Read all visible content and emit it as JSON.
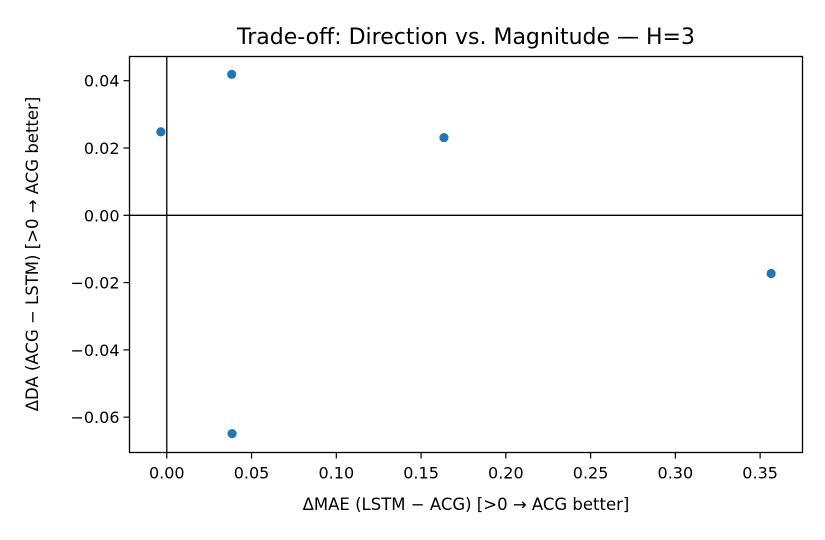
{
  "chart_data": {
    "type": "scatter",
    "title": "Trade-off: Direction vs. Magnitude — H=3",
    "xlabel": "ΔMAE (LSTM − ACG)  [>0 → ACG better]",
    "ylabel": "ΔDA  (ACG − LSTM)  [>0 → ACG better]",
    "xlim": [
      -0.022,
      0.375
    ],
    "ylim": [
      -0.0705,
      0.0472
    ],
    "x_ticks": [
      0.0,
      0.05,
      0.1,
      0.15,
      0.2,
      0.25,
      0.3,
      0.35
    ],
    "x_tick_labels": [
      "0.00",
      "0.05",
      "0.10",
      "0.15",
      "0.20",
      "0.25",
      "0.30",
      "0.35"
    ],
    "y_ticks": [
      -0.06,
      -0.04,
      -0.02,
      0.0,
      0.02,
      0.04
    ],
    "y_tick_labels": [
      "−0.06",
      "−0.04",
      "−0.02",
      "0.00",
      "0.02",
      "0.04"
    ],
    "reference_lines": {
      "x": 0,
      "y": 0
    },
    "grid": false,
    "marker_color": "#1f77b4",
    "points": [
      {
        "x": -0.0035,
        "y": 0.0248
      },
      {
        "x": 0.0383,
        "y": 0.0419
      },
      {
        "x": 0.1635,
        "y": 0.0231
      },
      {
        "x": 0.3565,
        "y": -0.0173
      },
      {
        "x": 0.0385,
        "y": -0.0649
      }
    ]
  }
}
